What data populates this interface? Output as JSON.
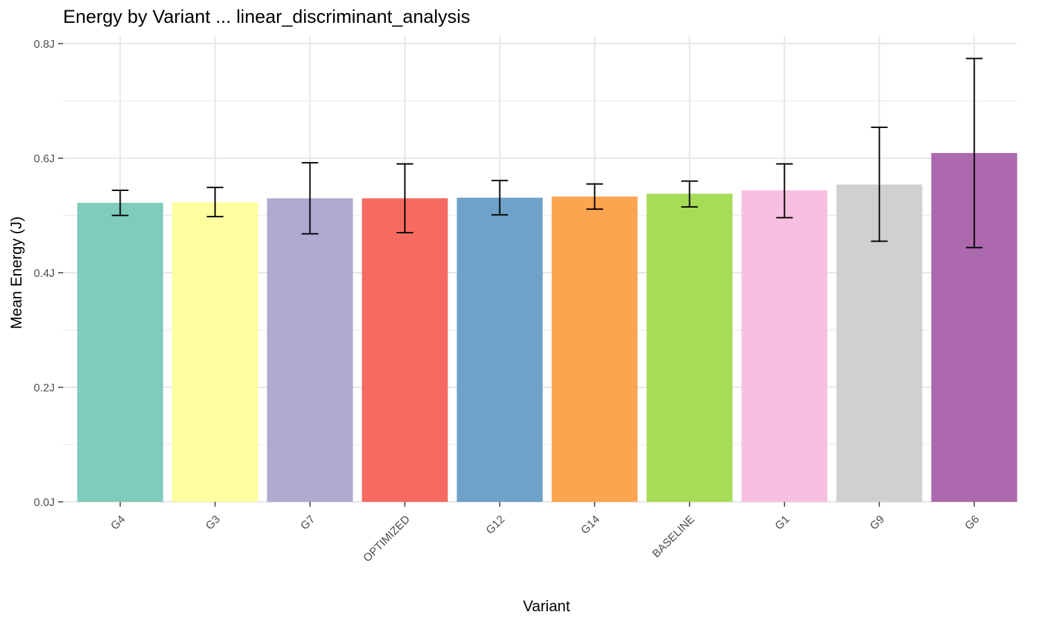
{
  "chart_data": {
    "type": "bar",
    "title": "Energy by Variant ... linear_discriminant_analysis",
    "xlabel": "Variant",
    "ylabel": "Mean Energy (J)",
    "ylim": [
      0,
      0.8
    ],
    "y_ticks": [
      {
        "value": 0.0,
        "label": "0.0J"
      },
      {
        "value": 0.2,
        "label": "0.2J"
      },
      {
        "value": 0.4,
        "label": "0.4J"
      },
      {
        "value": 0.6,
        "label": "0.6J"
      },
      {
        "value": 0.8,
        "label": "0.8J"
      }
    ],
    "grid": true,
    "legend": "none",
    "categories": [
      "G4",
      "G3",
      "G7",
      "OPTIMIZED",
      "G12",
      "G14",
      "BASELINE",
      "G1",
      "G9",
      "G6"
    ],
    "values": [
      0.522,
      0.523,
      0.53,
      0.53,
      0.531,
      0.533,
      0.538,
      0.544,
      0.554,
      0.609
    ],
    "error_low": [
      0.5,
      0.498,
      0.468,
      0.47,
      0.501,
      0.511,
      0.515,
      0.496,
      0.455,
      0.444
    ],
    "error_high": [
      0.544,
      0.549,
      0.592,
      0.59,
      0.561,
      0.555,
      0.56,
      0.59,
      0.654,
      0.774
    ],
    "colors": [
      "#7fcbbc",
      "#ffff9f",
      "#afaad0",
      "#f66b61",
      "#6ea2c9",
      "#fba550",
      "#a6dc57",
      "#f8c0e0",
      "#d0d0d0",
      "#ad69ae"
    ]
  }
}
